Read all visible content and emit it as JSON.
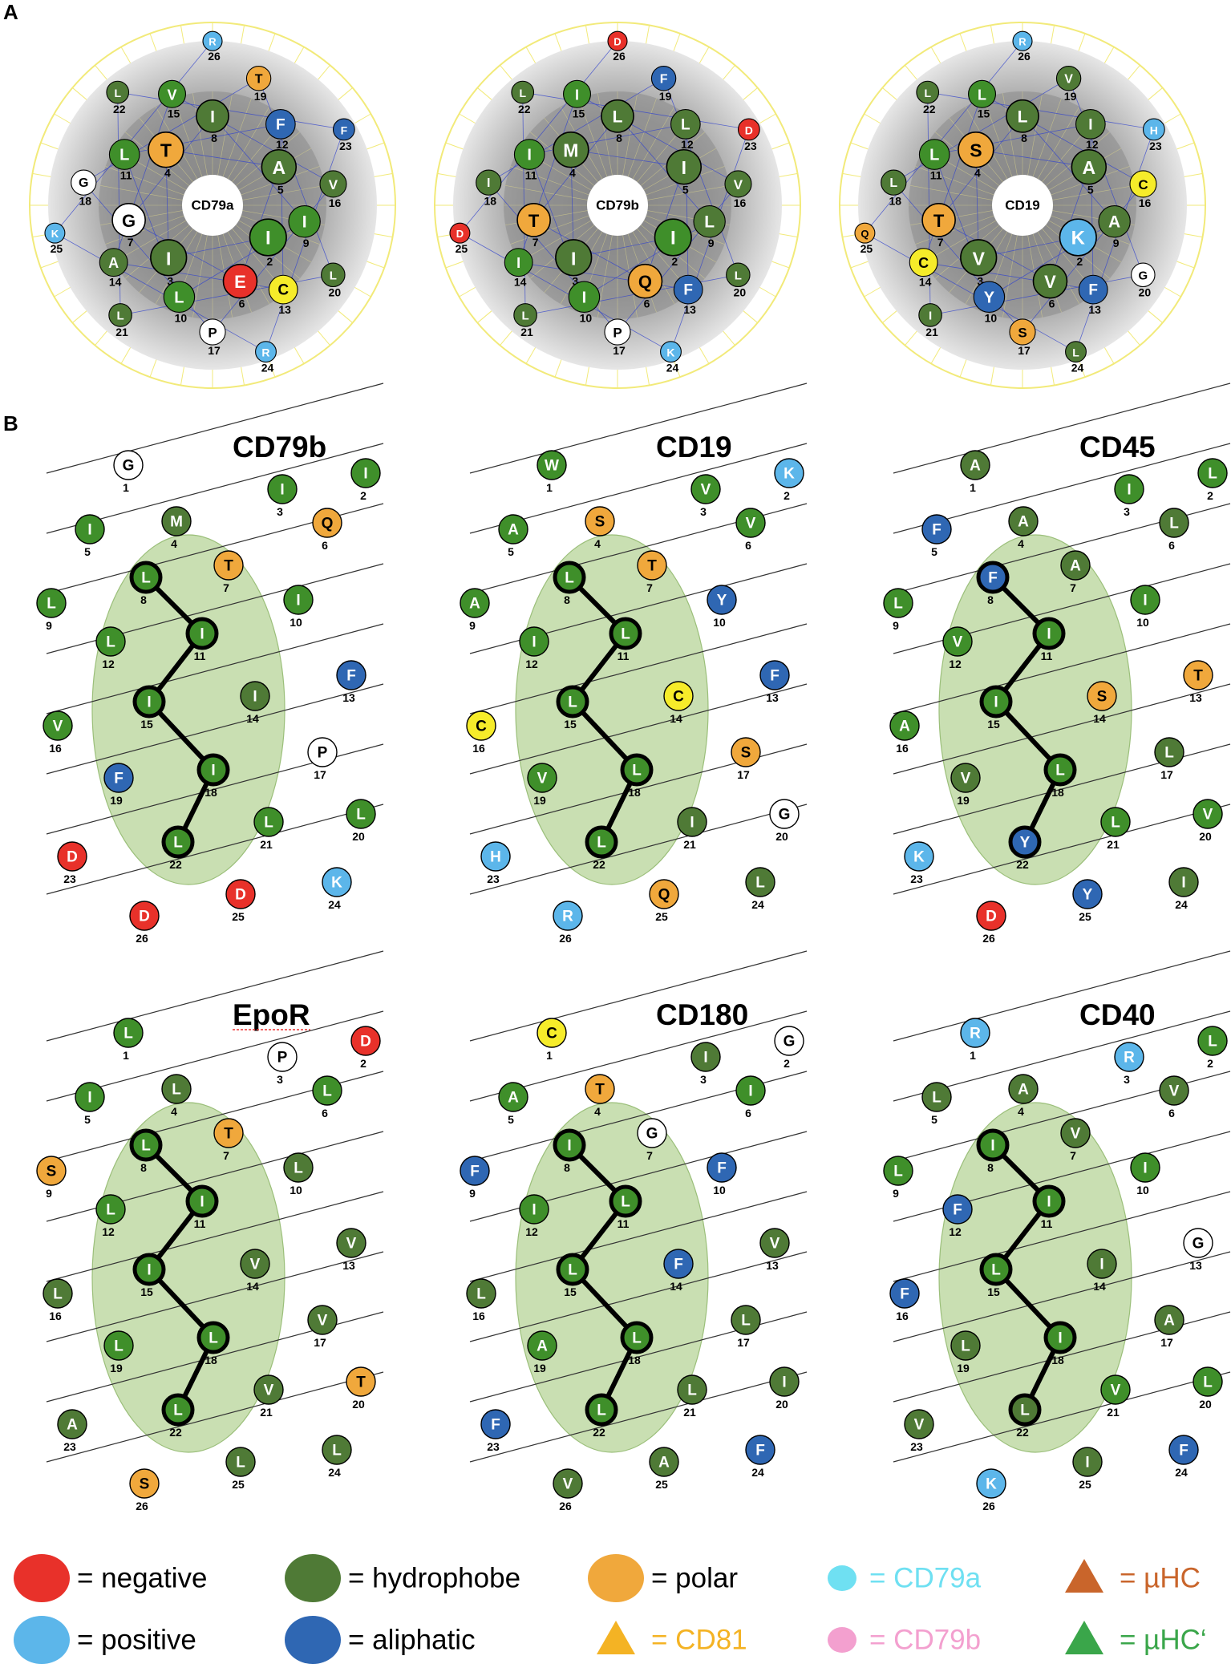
{
  "panels": {
    "a": "A",
    "b": "B"
  },
  "colors": {
    "negative": "#e8312a",
    "positive": "#5cb6ea",
    "hydrophobe": "#4f7a36",
    "hydrophobe_bright": "#3f8f2a",
    "aliphatic": "#2f67b3",
    "polar": "#f0a83c",
    "cysteine": "#f6ec2a",
    "glycine_proline": "#ffffff",
    "cd81": "#f4b324",
    "cd79a": "#6fe0f2",
    "cd79b": "#f3a0cf",
    "muhc": "#c9652b",
    "muhc_prime": "#3aa64a",
    "helix_ellipse": "#c9dfb2",
    "wheel_gray": "#9a9a9a"
  },
  "wheels": [
    {
      "label": "CD79a",
      "residues": [
        {
          "n": 2,
          "aa": "I",
          "c": "hydrophobe_bright"
        },
        {
          "n": 3,
          "aa": "I",
          "c": "hydrophobe"
        },
        {
          "n": 4,
          "aa": "T",
          "c": "polar"
        },
        {
          "n": 5,
          "aa": "A",
          "c": "hydrophobe"
        },
        {
          "n": 6,
          "aa": "E",
          "c": "negative"
        },
        {
          "n": 7,
          "aa": "G",
          "c": "glycine_proline"
        },
        {
          "n": 8,
          "aa": "I",
          "c": "hydrophobe"
        },
        {
          "n": 9,
          "aa": "I",
          "c": "hydrophobe_bright"
        },
        {
          "n": 10,
          "aa": "L",
          "c": "hydrophobe_bright"
        },
        {
          "n": 11,
          "aa": "L",
          "c": "hydrophobe_bright"
        },
        {
          "n": 12,
          "aa": "F",
          "c": "aliphatic"
        },
        {
          "n": 13,
          "aa": "C",
          "c": "cysteine"
        },
        {
          "n": 14,
          "aa": "A",
          "c": "hydrophobe"
        },
        {
          "n": 15,
          "aa": "V",
          "c": "hydrophobe_bright"
        },
        {
          "n": 16,
          "aa": "V",
          "c": "hydrophobe"
        },
        {
          "n": 17,
          "aa": "P",
          "c": "glycine_proline"
        },
        {
          "n": 18,
          "aa": "G",
          "c": "glycine_proline"
        },
        {
          "n": 19,
          "aa": "T",
          "c": "polar"
        },
        {
          "n": 20,
          "aa": "L",
          "c": "hydrophobe"
        },
        {
          "n": 21,
          "aa": "L",
          "c": "hydrophobe"
        },
        {
          "n": 22,
          "aa": "L",
          "c": "hydrophobe"
        },
        {
          "n": 23,
          "aa": "F",
          "c": "aliphatic"
        },
        {
          "n": 24,
          "aa": "R",
          "c": "positive"
        },
        {
          "n": 25,
          "aa": "K",
          "c": "positive"
        },
        {
          "n": 26,
          "aa": "R",
          "c": "positive"
        }
      ]
    },
    {
      "label": "CD79b",
      "residues": [
        {
          "n": 2,
          "aa": "I",
          "c": "hydrophobe_bright"
        },
        {
          "n": 3,
          "aa": "I",
          "c": "hydrophobe"
        },
        {
          "n": 4,
          "aa": "M",
          "c": "hydrophobe"
        },
        {
          "n": 5,
          "aa": "I",
          "c": "hydrophobe"
        },
        {
          "n": 6,
          "aa": "Q",
          "c": "polar"
        },
        {
          "n": 7,
          "aa": "T",
          "c": "polar"
        },
        {
          "n": 8,
          "aa": "L",
          "c": "hydrophobe"
        },
        {
          "n": 9,
          "aa": "L",
          "c": "hydrophobe"
        },
        {
          "n": 10,
          "aa": "I",
          "c": "hydrophobe_bright"
        },
        {
          "n": 11,
          "aa": "I",
          "c": "hydrophobe_bright"
        },
        {
          "n": 12,
          "aa": "L",
          "c": "hydrophobe"
        },
        {
          "n": 13,
          "aa": "F",
          "c": "aliphatic"
        },
        {
          "n": 14,
          "aa": "I",
          "c": "hydrophobe_bright"
        },
        {
          "n": 15,
          "aa": "I",
          "c": "hydrophobe_bright"
        },
        {
          "n": 16,
          "aa": "V",
          "c": "hydrophobe"
        },
        {
          "n": 17,
          "aa": "P",
          "c": "glycine_proline"
        },
        {
          "n": 18,
          "aa": "I",
          "c": "hydrophobe"
        },
        {
          "n": 19,
          "aa": "F",
          "c": "aliphatic"
        },
        {
          "n": 20,
          "aa": "L",
          "c": "hydrophobe"
        },
        {
          "n": 21,
          "aa": "L",
          "c": "hydrophobe"
        },
        {
          "n": 22,
          "aa": "L",
          "c": "hydrophobe"
        },
        {
          "n": 23,
          "aa": "D",
          "c": "negative"
        },
        {
          "n": 24,
          "aa": "K",
          "c": "positive"
        },
        {
          "n": 25,
          "aa": "D",
          "c": "negative"
        },
        {
          "n": 26,
          "aa": "D",
          "c": "negative"
        }
      ]
    },
    {
      "label": "CD19",
      "residues": [
        {
          "n": 2,
          "aa": "K",
          "c": "positive"
        },
        {
          "n": 3,
          "aa": "V",
          "c": "hydrophobe"
        },
        {
          "n": 4,
          "aa": "S",
          "c": "polar"
        },
        {
          "n": 5,
          "aa": "A",
          "c": "hydrophobe"
        },
        {
          "n": 6,
          "aa": "V",
          "c": "hydrophobe"
        },
        {
          "n": 7,
          "aa": "T",
          "c": "polar"
        },
        {
          "n": 8,
          "aa": "L",
          "c": "hydrophobe"
        },
        {
          "n": 9,
          "aa": "A",
          "c": "hydrophobe"
        },
        {
          "n": 10,
          "aa": "Y",
          "c": "aliphatic"
        },
        {
          "n": 11,
          "aa": "L",
          "c": "hydrophobe_bright"
        },
        {
          "n": 12,
          "aa": "I",
          "c": "hydrophobe"
        },
        {
          "n": 13,
          "aa": "F",
          "c": "aliphatic"
        },
        {
          "n": 14,
          "aa": "C",
          "c": "cysteine"
        },
        {
          "n": 15,
          "aa": "L",
          "c": "hydrophobe_bright"
        },
        {
          "n": 16,
          "aa": "C",
          "c": "cysteine"
        },
        {
          "n": 17,
          "aa": "S",
          "c": "polar"
        },
        {
          "n": 18,
          "aa": "L",
          "c": "hydrophobe"
        },
        {
          "n": 19,
          "aa": "V",
          "c": "hydrophobe"
        },
        {
          "n": 20,
          "aa": "G",
          "c": "glycine_proline"
        },
        {
          "n": 21,
          "aa": "I",
          "c": "hydrophobe"
        },
        {
          "n": 22,
          "aa": "L",
          "c": "hydrophobe"
        },
        {
          "n": 23,
          "aa": "H",
          "c": "positive"
        },
        {
          "n": 24,
          "aa": "L",
          "c": "hydrophobe"
        },
        {
          "n": 25,
          "aa": "Q",
          "c": "polar"
        },
        {
          "n": 26,
          "aa": "R",
          "c": "positive"
        }
      ]
    }
  ],
  "helices": [
    {
      "title": "CD79b",
      "seq": [
        "G",
        "I",
        "I",
        "M",
        "I",
        "Q",
        "T",
        "L",
        "L",
        "I",
        "I",
        "L",
        "F",
        "I",
        "I",
        "V",
        "P",
        "I",
        "F",
        "L",
        "L",
        "L",
        "D",
        "K",
        "D",
        "D"
      ],
      "cols": [
        "glycine_proline",
        "hydrophobe_bright",
        "hydrophobe_bright",
        "hydrophobe",
        "hydrophobe_bright",
        "polar",
        "polar",
        "hydrophobe_bright",
        "hydrophobe_bright",
        "hydrophobe_bright",
        "hydrophobe_bright",
        "hydrophobe_bright",
        "aliphatic",
        "hydrophobe",
        "hydrophobe_bright",
        "hydrophobe_bright",
        "glycine_proline",
        "hydrophobe_bright",
        "aliphatic",
        "hydrophobe_bright",
        "hydrophobe_bright",
        "hydrophobe_bright",
        "negative",
        "positive",
        "negative",
        "negative"
      ]
    },
    {
      "title": "CD19",
      "seq": [
        "W",
        "K",
        "V",
        "S",
        "A",
        "V",
        "T",
        "L",
        "A",
        "Y",
        "L",
        "I",
        "F",
        "C",
        "L",
        "C",
        "S",
        "L",
        "V",
        "G",
        "I",
        "L",
        "H",
        "L",
        "Q",
        "R"
      ],
      "cols": [
        "hydrophobe_bright",
        "positive",
        "hydrophobe_bright",
        "polar",
        "hydrophobe_bright",
        "hydrophobe_bright",
        "polar",
        "hydrophobe_bright",
        "hydrophobe_bright",
        "aliphatic",
        "hydrophobe_bright",
        "hydrophobe_bright",
        "aliphatic",
        "cysteine",
        "hydrophobe_bright",
        "cysteine",
        "polar",
        "hydrophobe_bright",
        "hydrophobe_bright",
        "glycine_proline",
        "hydrophobe",
        "hydrophobe_bright",
        "positive",
        "hydrophobe",
        "polar",
        "positive"
      ]
    },
    {
      "title": "CD45",
      "seq": [
        "A",
        "L",
        "I",
        "A",
        "F",
        "L",
        "A",
        "F",
        "L",
        "I",
        "I",
        "V",
        "T",
        "S",
        "I",
        "A",
        "L",
        "L",
        "V",
        "V",
        "L",
        "Y",
        "K",
        "I",
        "Y",
        "D"
      ],
      "cols": [
        "hydrophobe",
        "hydrophobe_bright",
        "hydrophobe_bright",
        "hydrophobe",
        "aliphatic",
        "hydrophobe",
        "hydrophobe",
        "aliphatic",
        "hydrophobe_bright",
        "hydrophobe_bright",
        "hydrophobe_bright",
        "hydrophobe_bright",
        "polar",
        "polar",
        "hydrophobe_bright",
        "hydrophobe_bright",
        "hydrophobe",
        "hydrophobe_bright",
        "hydrophobe",
        "hydrophobe_bright",
        "hydrophobe_bright",
        "aliphatic",
        "positive",
        "hydrophobe",
        "aliphatic",
        "negative"
      ]
    },
    {
      "title": "EpoR",
      "seq": [
        "L",
        "D",
        "P",
        "L",
        "I",
        "L",
        "T",
        "L",
        "S",
        "L",
        "I",
        "L",
        "V",
        "V",
        "I",
        "L",
        "V",
        "L",
        "L",
        "T",
        "V",
        "L",
        "A",
        "L",
        "L",
        "S"
      ],
      "cols": [
        "hydrophobe_bright",
        "negative",
        "glycine_proline",
        "hydrophobe",
        "hydrophobe_bright",
        "hydrophobe_bright",
        "polar",
        "hydrophobe_bright",
        "polar",
        "hydrophobe",
        "hydrophobe_bright",
        "hydrophobe_bright",
        "hydrophobe",
        "hydrophobe",
        "hydrophobe_bright",
        "hydrophobe",
        "hydrophobe",
        "hydrophobe_bright",
        "hydrophobe_bright",
        "polar",
        "hydrophobe",
        "hydrophobe_bright",
        "hydrophobe",
        "hydrophobe",
        "hydrophobe",
        "polar"
      ]
    },
    {
      "title": "CD180",
      "seq": [
        "C",
        "G",
        "I",
        "T",
        "A",
        "I",
        "G",
        "I",
        "F",
        "F",
        "L",
        "I",
        "V",
        "F",
        "L",
        "L",
        "L",
        "L",
        "A",
        "I",
        "L",
        "L",
        "F",
        "F",
        "A",
        "V"
      ],
      "cols": [
        "cysteine",
        "glycine_proline",
        "hydrophobe",
        "polar",
        "hydrophobe_bright",
        "hydrophobe_bright",
        "glycine_proline",
        "hydrophobe_bright",
        "aliphatic",
        "aliphatic",
        "hydrophobe_bright",
        "hydrophobe_bright",
        "hydrophobe",
        "aliphatic",
        "hydrophobe_bright",
        "hydrophobe",
        "hydrophobe",
        "hydrophobe_bright",
        "hydrophobe_bright",
        "hydrophobe",
        "hydrophobe",
        "hydrophobe_bright",
        "aliphatic",
        "aliphatic",
        "hydrophobe",
        "hydrophobe"
      ]
    },
    {
      "title": "CD40",
      "seq": [
        "R",
        "L",
        "R",
        "A",
        "L",
        "V",
        "V",
        "I",
        "L",
        "I",
        "I",
        "F",
        "G",
        "I",
        "L",
        "F",
        "A",
        "I",
        "L",
        "L",
        "V",
        "L",
        "V",
        "F",
        "I",
        "K"
      ],
      "cols": [
        "positive",
        "hydrophobe_bright",
        "positive",
        "hydrophobe",
        "hydrophobe",
        "hydrophobe",
        "hydrophobe",
        "hydrophobe_bright",
        "hydrophobe_bright",
        "hydrophobe_bright",
        "hydrophobe_bright",
        "aliphatic",
        "glycine_proline",
        "hydrophobe",
        "hydrophobe_bright",
        "aliphatic",
        "hydrophobe",
        "hydrophobe_bright",
        "hydrophobe",
        "hydrophobe_bright",
        "hydrophobe_bright",
        "hydrophobe",
        "hydrophobe",
        "aliphatic",
        "hydrophobe",
        "positive"
      ]
    }
  ],
  "legend": [
    {
      "shape": "circle",
      "color": "negative",
      "label": "= negative",
      "text_color": "#000000"
    },
    {
      "shape": "circle",
      "color": "positive",
      "label": "= positive",
      "text_color": "#000000"
    },
    {
      "shape": "circle",
      "color": "hydrophobe",
      "label": "= hydrophobe",
      "text_color": "#000000"
    },
    {
      "shape": "circle",
      "color": "aliphatic",
      "label": "= aliphatic",
      "text_color": "#000000"
    },
    {
      "shape": "circle",
      "color": "polar",
      "label": "= polar",
      "text_color": "#000000"
    },
    {
      "shape": "triangle",
      "color": "cd81",
      "label": "= CD81",
      "text_color": "#f4b324"
    },
    {
      "shape": "circle",
      "color": "cd79a",
      "label": "= CD79a",
      "text_color": "#6fe0f2"
    },
    {
      "shape": "circle",
      "color": "cd79b",
      "label": "= CD79b",
      "text_color": "#f3a0cf"
    },
    {
      "shape": "triangle",
      "color": "muhc",
      "label": "= µHC",
      "text_color": "#c9652b"
    },
    {
      "shape": "triangle",
      "color": "muhc_prime",
      "label": "= µHC‘",
      "text_color": "#3aa64a"
    }
  ]
}
